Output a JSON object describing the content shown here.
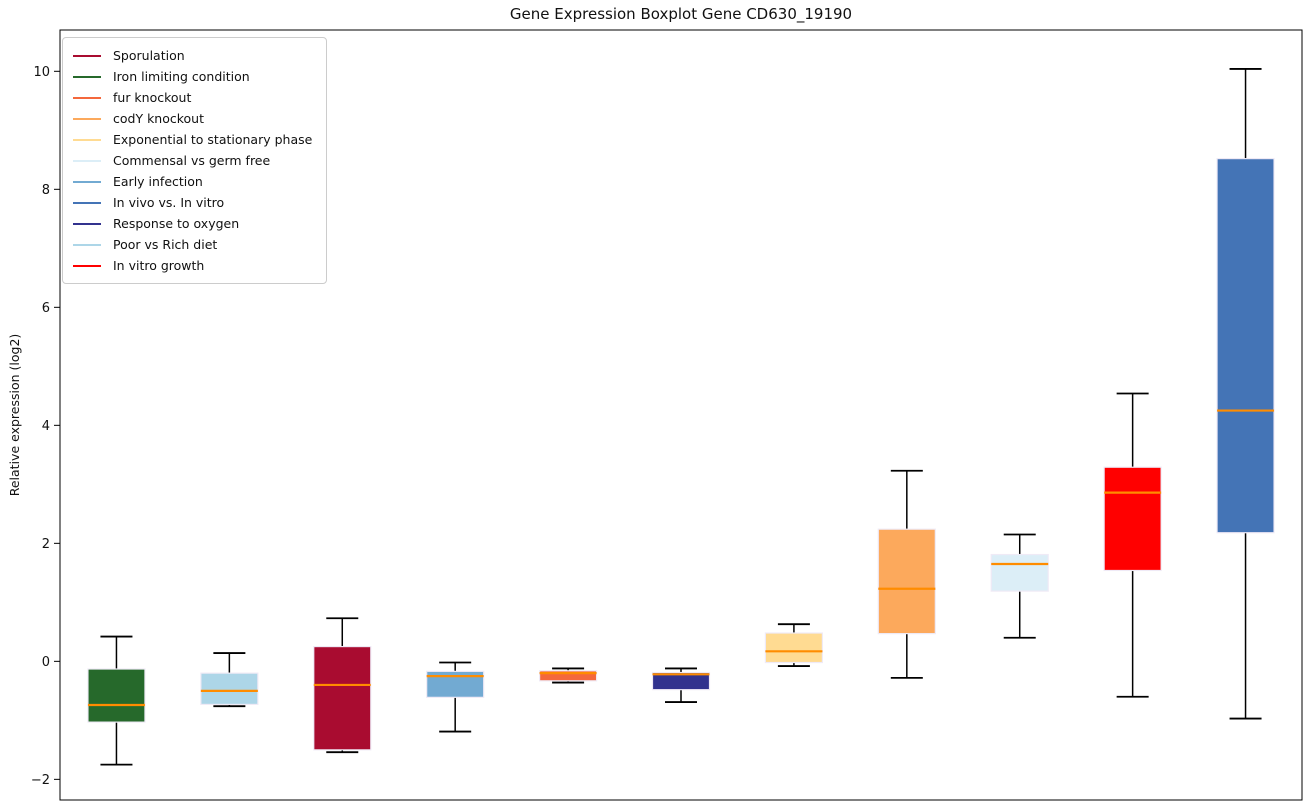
{
  "figure": {
    "title": "Gene Expression Boxplot Gene CD630_19190",
    "ylabel": "Relative expression (log2)"
  },
  "chart_data": {
    "type": "boxplot",
    "title": "Gene Expression Boxplot Gene CD630_19190",
    "xlabel": "",
    "ylabel": "Relative expression (log2)",
    "ylim": [
      -2.35,
      10.7
    ],
    "yticks": [
      -2,
      0,
      2,
      4,
      6,
      8,
      10
    ],
    "grid": false,
    "legend_position": "upper-left",
    "median_color": "#FF8C00",
    "whisker_color": "#000000",
    "box_edge_color": "#EFEAF6",
    "legend": [
      {
        "label": "Sporulation",
        "color": "#A90C30"
      },
      {
        "label": "Iron limiting condition",
        "color": "#26692B"
      },
      {
        "label": "fur knockout",
        "color": "#F4683C"
      },
      {
        "label": "codY knockout",
        "color": "#FCA95C"
      },
      {
        "label": "Exponential to stationary phase",
        "color": "#FFDB92"
      },
      {
        "label": "Commensal vs germ free",
        "color": "#DCEEF7"
      },
      {
        "label": "Early infection",
        "color": "#72AAD2"
      },
      {
        "label": "In vivo vs. In vitro",
        "color": "#4474B6"
      },
      {
        "label": "Response to oxygen",
        "color": "#32328E"
      },
      {
        "label": "Poor vs Rich diet",
        "color": "#ADD6E8"
      },
      {
        "label": "In vitro growth",
        "color": "#FF0000"
      }
    ],
    "series": [
      {
        "name": "Iron limiting condition",
        "color": "#26692B",
        "whisker_low": -1.75,
        "q1": -1.03,
        "median": -0.74,
        "q3": -0.13,
        "whisker_high": 0.42
      },
      {
        "name": "Poor vs Rich diet",
        "color": "#ADD6E8",
        "whisker_low": -0.76,
        "q1": -0.73,
        "median": -0.5,
        "q3": -0.2,
        "whisker_high": 0.14
      },
      {
        "name": "Sporulation",
        "color": "#A90C30",
        "whisker_low": -1.54,
        "q1": -1.5,
        "median": -0.4,
        "q3": 0.25,
        "whisker_high": 0.73
      },
      {
        "name": "Early infection",
        "color": "#72AAD2",
        "whisker_low": -1.19,
        "q1": -0.61,
        "median": -0.25,
        "q3": -0.17,
        "whisker_high": -0.02
      },
      {
        "name": "fur knockout",
        "color": "#F4683C",
        "whisker_low": -0.36,
        "q1": -0.33,
        "median": -0.2,
        "q3": -0.16,
        "whisker_high": -0.12
      },
      {
        "name": "Response to oxygen",
        "color": "#32328E",
        "whisker_low": -0.69,
        "q1": -0.48,
        "median": -0.22,
        "q3": -0.19,
        "whisker_high": -0.12
      },
      {
        "name": "Exponential to stationary phase",
        "color": "#FFDB92",
        "whisker_low": -0.08,
        "q1": -0.02,
        "median": 0.17,
        "q3": 0.48,
        "whisker_high": 0.63
      },
      {
        "name": "codY knockout",
        "color": "#FCA95C",
        "whisker_low": -0.28,
        "q1": 0.47,
        "median": 1.23,
        "q3": 2.24,
        "whisker_high": 3.23
      },
      {
        "name": "Commensal vs germ free",
        "color": "#DCEEF7",
        "whisker_low": 0.4,
        "q1": 1.19,
        "median": 1.65,
        "q3": 1.81,
        "whisker_high": 2.15
      },
      {
        "name": "In vitro growth",
        "color": "#FF0000",
        "whisker_low": -0.6,
        "q1": 1.54,
        "median": 2.86,
        "q3": 3.29,
        "whisker_high": 4.54
      },
      {
        "name": "In vivo vs. In vitro",
        "color": "#4474B6",
        "whisker_low": -0.97,
        "q1": 2.18,
        "median": 4.25,
        "q3": 8.52,
        "whisker_high": 10.04
      }
    ]
  }
}
